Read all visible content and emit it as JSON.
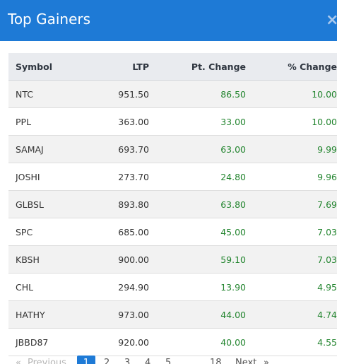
{
  "modal": {
    "title": "Top Gainers",
    "close_glyph": "×"
  },
  "table": {
    "headers": [
      "Symbol",
      "LTP",
      "Pt. Change",
      "% Change"
    ],
    "rows": [
      {
        "symbol": "NTC",
        "ltp": "951.50",
        "pt_change": "86.50",
        "pct_change": "10.00"
      },
      {
        "symbol": "PPL",
        "ltp": "363.00",
        "pt_change": "33.00",
        "pct_change": "10.00"
      },
      {
        "symbol": "SAMAJ",
        "ltp": "693.70",
        "pt_change": "63.00",
        "pct_change": "9.99"
      },
      {
        "symbol": "JOSHI",
        "ltp": "273.70",
        "pt_change": "24.80",
        "pct_change": "9.96"
      },
      {
        "symbol": "GLBSL",
        "ltp": "893.80",
        "pt_change": "63.80",
        "pct_change": "7.69"
      },
      {
        "symbol": "SPC",
        "ltp": "685.00",
        "pt_change": "45.00",
        "pct_change": "7.03"
      },
      {
        "symbol": "KBSH",
        "ltp": "900.00",
        "pt_change": "59.10",
        "pct_change": "7.03"
      },
      {
        "symbol": "CHL",
        "ltp": "294.90",
        "pt_change": "13.90",
        "pct_change": "4.95"
      },
      {
        "symbol": "HATHY",
        "ltp": "973.00",
        "pt_change": "44.00",
        "pct_change": "4.74"
      },
      {
        "symbol": "JBBD87",
        "ltp": "920.00",
        "pt_change": "40.00",
        "pct_change": "4.55"
      }
    ]
  },
  "pagination": {
    "prev_arrow": "«",
    "previous": "Previous",
    "pages": [
      "1",
      "2",
      "3",
      "4",
      "5"
    ],
    "ellipsis": "...",
    "last_page": "18",
    "next": "Next",
    "next_arrow": "»"
  },
  "colors": {
    "header_bg": "#1e7ad6",
    "positive": "#23852f",
    "table_head_bg": "#e9ebef",
    "stripe_bg": "#f2f2f2"
  }
}
